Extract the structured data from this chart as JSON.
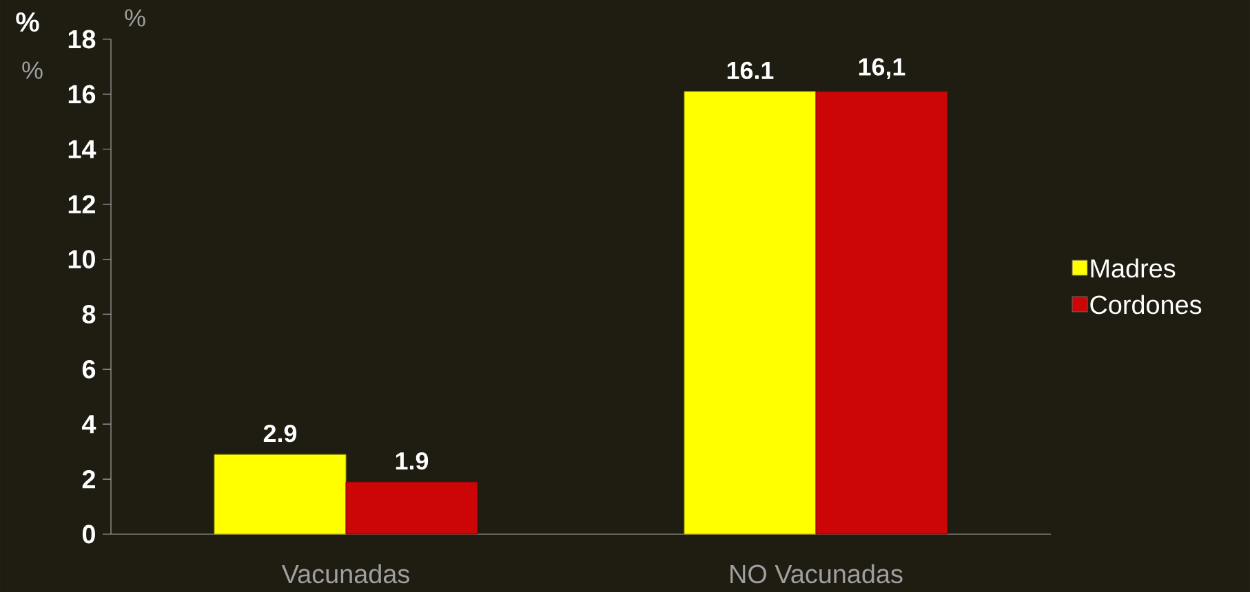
{
  "chart_data": {
    "type": "bar",
    "ylabel": "%",
    "categories": [
      "Vacunadas",
      "NO Vacunadas"
    ],
    "series": [
      {
        "name": "Madres",
        "color": "#ffff00",
        "values": [
          2.9,
          16.1
        ],
        "value_labels": [
          "2.9",
          "16.1"
        ]
      },
      {
        "name": "Cordones",
        "color": "#cc0606",
        "values": [
          1.9,
          16.1
        ],
        "value_labels": [
          "1.9",
          "16,1"
        ]
      }
    ],
    "ylim": [
      0,
      18
    ],
    "yticks": [
      0,
      2,
      4,
      6,
      8,
      10,
      12,
      14,
      16,
      18
    ],
    "grid": false,
    "legend": "right",
    "annotations": [
      "%",
      "%"
    ]
  }
}
